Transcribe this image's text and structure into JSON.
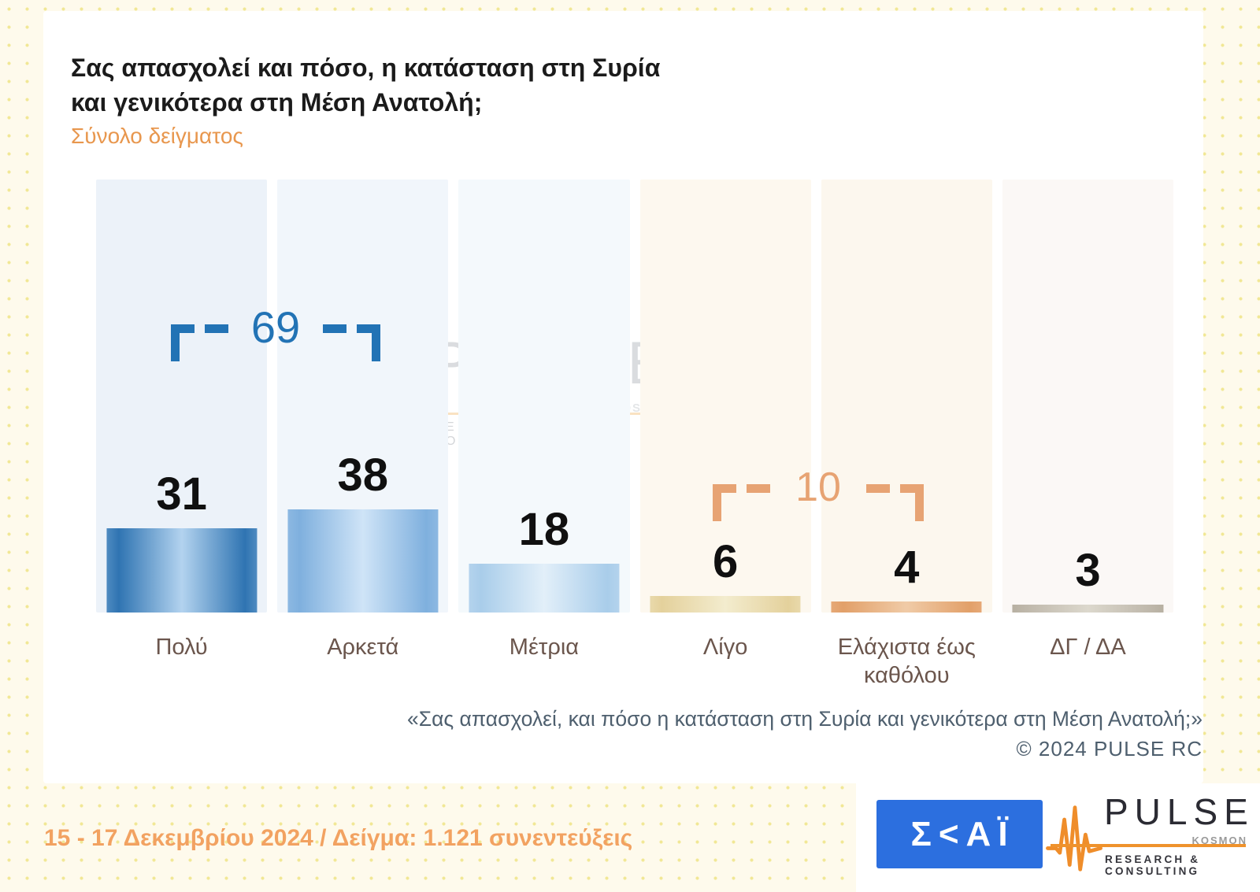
{
  "header": {
    "title_line1": "Σας απασχολεί και πόσο, η κατάσταση στη Συρία",
    "title_line2": "και γενικότερα στη Μέση Ανατολή;",
    "subtitle": "Σύνολο δείγματος"
  },
  "chart_data": {
    "type": "bar",
    "title": "Σας απασχολεί και πόσο, η κατάσταση στη Συρία και γενικότερα στη Μέση Ανατολή;",
    "subtitle": "Σύνολο δείγματος",
    "axis": "none",
    "ylim": [
      0,
      40
    ],
    "categories": [
      "Πολύ",
      "Αρκετά",
      "Μέτρια",
      "Λίγο",
      "Ελάχιστα έως καθόλου",
      "ΔΓ / ΔΑ"
    ],
    "values": [
      31,
      38,
      18,
      6,
      4,
      3
    ],
    "bars": [
      {
        "label": "Πολύ",
        "value": 31,
        "column_bg": "#ecf2f9",
        "edge": "#4f8bc1",
        "dark": "#2f74b2",
        "center": "#b3d3ef"
      },
      {
        "label": "Αρκετά",
        "value": 38,
        "column_bg": "#f1f6fb",
        "edge": "#8cb8e2",
        "dark": "#7fb0de",
        "center": "#cfe4f7"
      },
      {
        "label": "Μέτρια",
        "value": 18,
        "column_bg": "#f4f9fc",
        "edge": "#b4d3ed",
        "dark": "#a9cdea",
        "center": "#e2eff9"
      },
      {
        "label": "Λίγο",
        "value": 6,
        "column_bg": "#fdf8ef",
        "edge": "#e9d9ab",
        "dark": "#e4d19c",
        "center": "#f3ecce"
      },
      {
        "label": "Ελάχιστα έως καθόλου",
        "value": 4,
        "column_bg": "#fcf7ee",
        "edge": "#e6a977",
        "dark": "#e2a069",
        "center": "#f0cba7"
      },
      {
        "label": "ΔΓ / ΔΑ",
        "value": 3,
        "column_bg": "#fbf8f6",
        "edge": "#b7b0a2",
        "dark": "#beb7aa",
        "center": "#dcd8cd"
      }
    ],
    "annotations": [
      {
        "text": "69",
        "spans": "Πολύ + Αρκετά",
        "color": "#2273b5"
      },
      {
        "text": "10",
        "spans": "Λίγο + Ελάχιστα έως καθόλου",
        "color": "#e7a373"
      }
    ]
  },
  "watermark": {
    "brand": "PULSE",
    "kosmon": "KOSMON",
    "sub": "RESEARCH & CONSULTING"
  },
  "footer": {
    "quote": "«Σας απασχολεί, και πόσο η κατάσταση στη Συρία και γενικότερα στη Μέση Ανατολή;»",
    "copyright": "©  2024  PULSE RC"
  },
  "bottom": {
    "fieldwork": "15 - 17 Δεκεμβρίου 2024  /  Δείγμα:  1.121 συνεντεύξεις"
  },
  "logos": {
    "skai_text": "Σ<ΑΪ",
    "pulse_brand": "PULSE",
    "pulse_kosmon": "KOSMON",
    "pulse_sub": "RESEARCH & CONSULTING"
  }
}
